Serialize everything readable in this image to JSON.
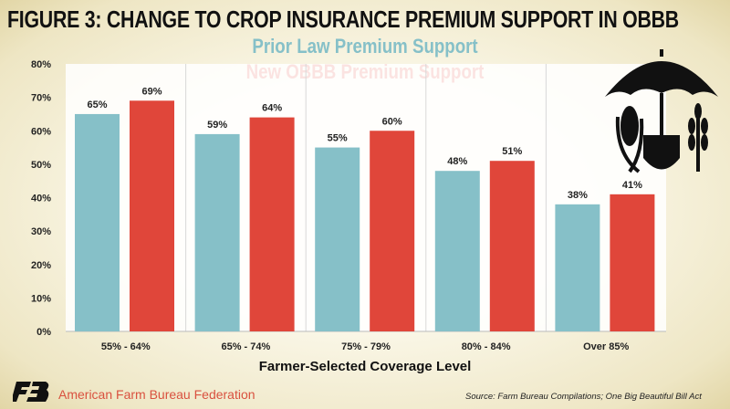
{
  "title": "FIGURE 3: CHANGE TO CROP INSURANCE PREMIUM SUPPORT IN OBBB",
  "chart_data": {
    "type": "bar",
    "categories": [
      "55% - 64%",
      "65% - 74%",
      "75% - 79%",
      "80% - 84%",
      "Over 85%"
    ],
    "series": [
      {
        "name": "Prior Law Premium Support",
        "values": [
          65,
          59,
          55,
          48,
          38
        ],
        "color": "#86c0c8"
      },
      {
        "name": "New OBBB Premium Support",
        "values": [
          69,
          64,
          60,
          51,
          41
        ],
        "color": "#e0463a"
      }
    ],
    "xlabel": "Farmer-Selected Coverage Level",
    "ylabel": "",
    "ylim": [
      0,
      80
    ],
    "yticks": [
      "0%",
      "10%",
      "20%",
      "30%",
      "40%",
      "50%",
      "60%",
      "70%",
      "80%"
    ],
    "value_suffix": "%",
    "grid": "vertical category separators",
    "legend": "top-center"
  },
  "footer": {
    "org": "American Farm Bureau Federation",
    "source": "Source: Farm Bureau Compilations; One Big Beautiful Bill Act",
    "logo_text": "FB"
  },
  "icons": [
    "umbrella-crops-icon",
    "afbf-logo-icon"
  ]
}
